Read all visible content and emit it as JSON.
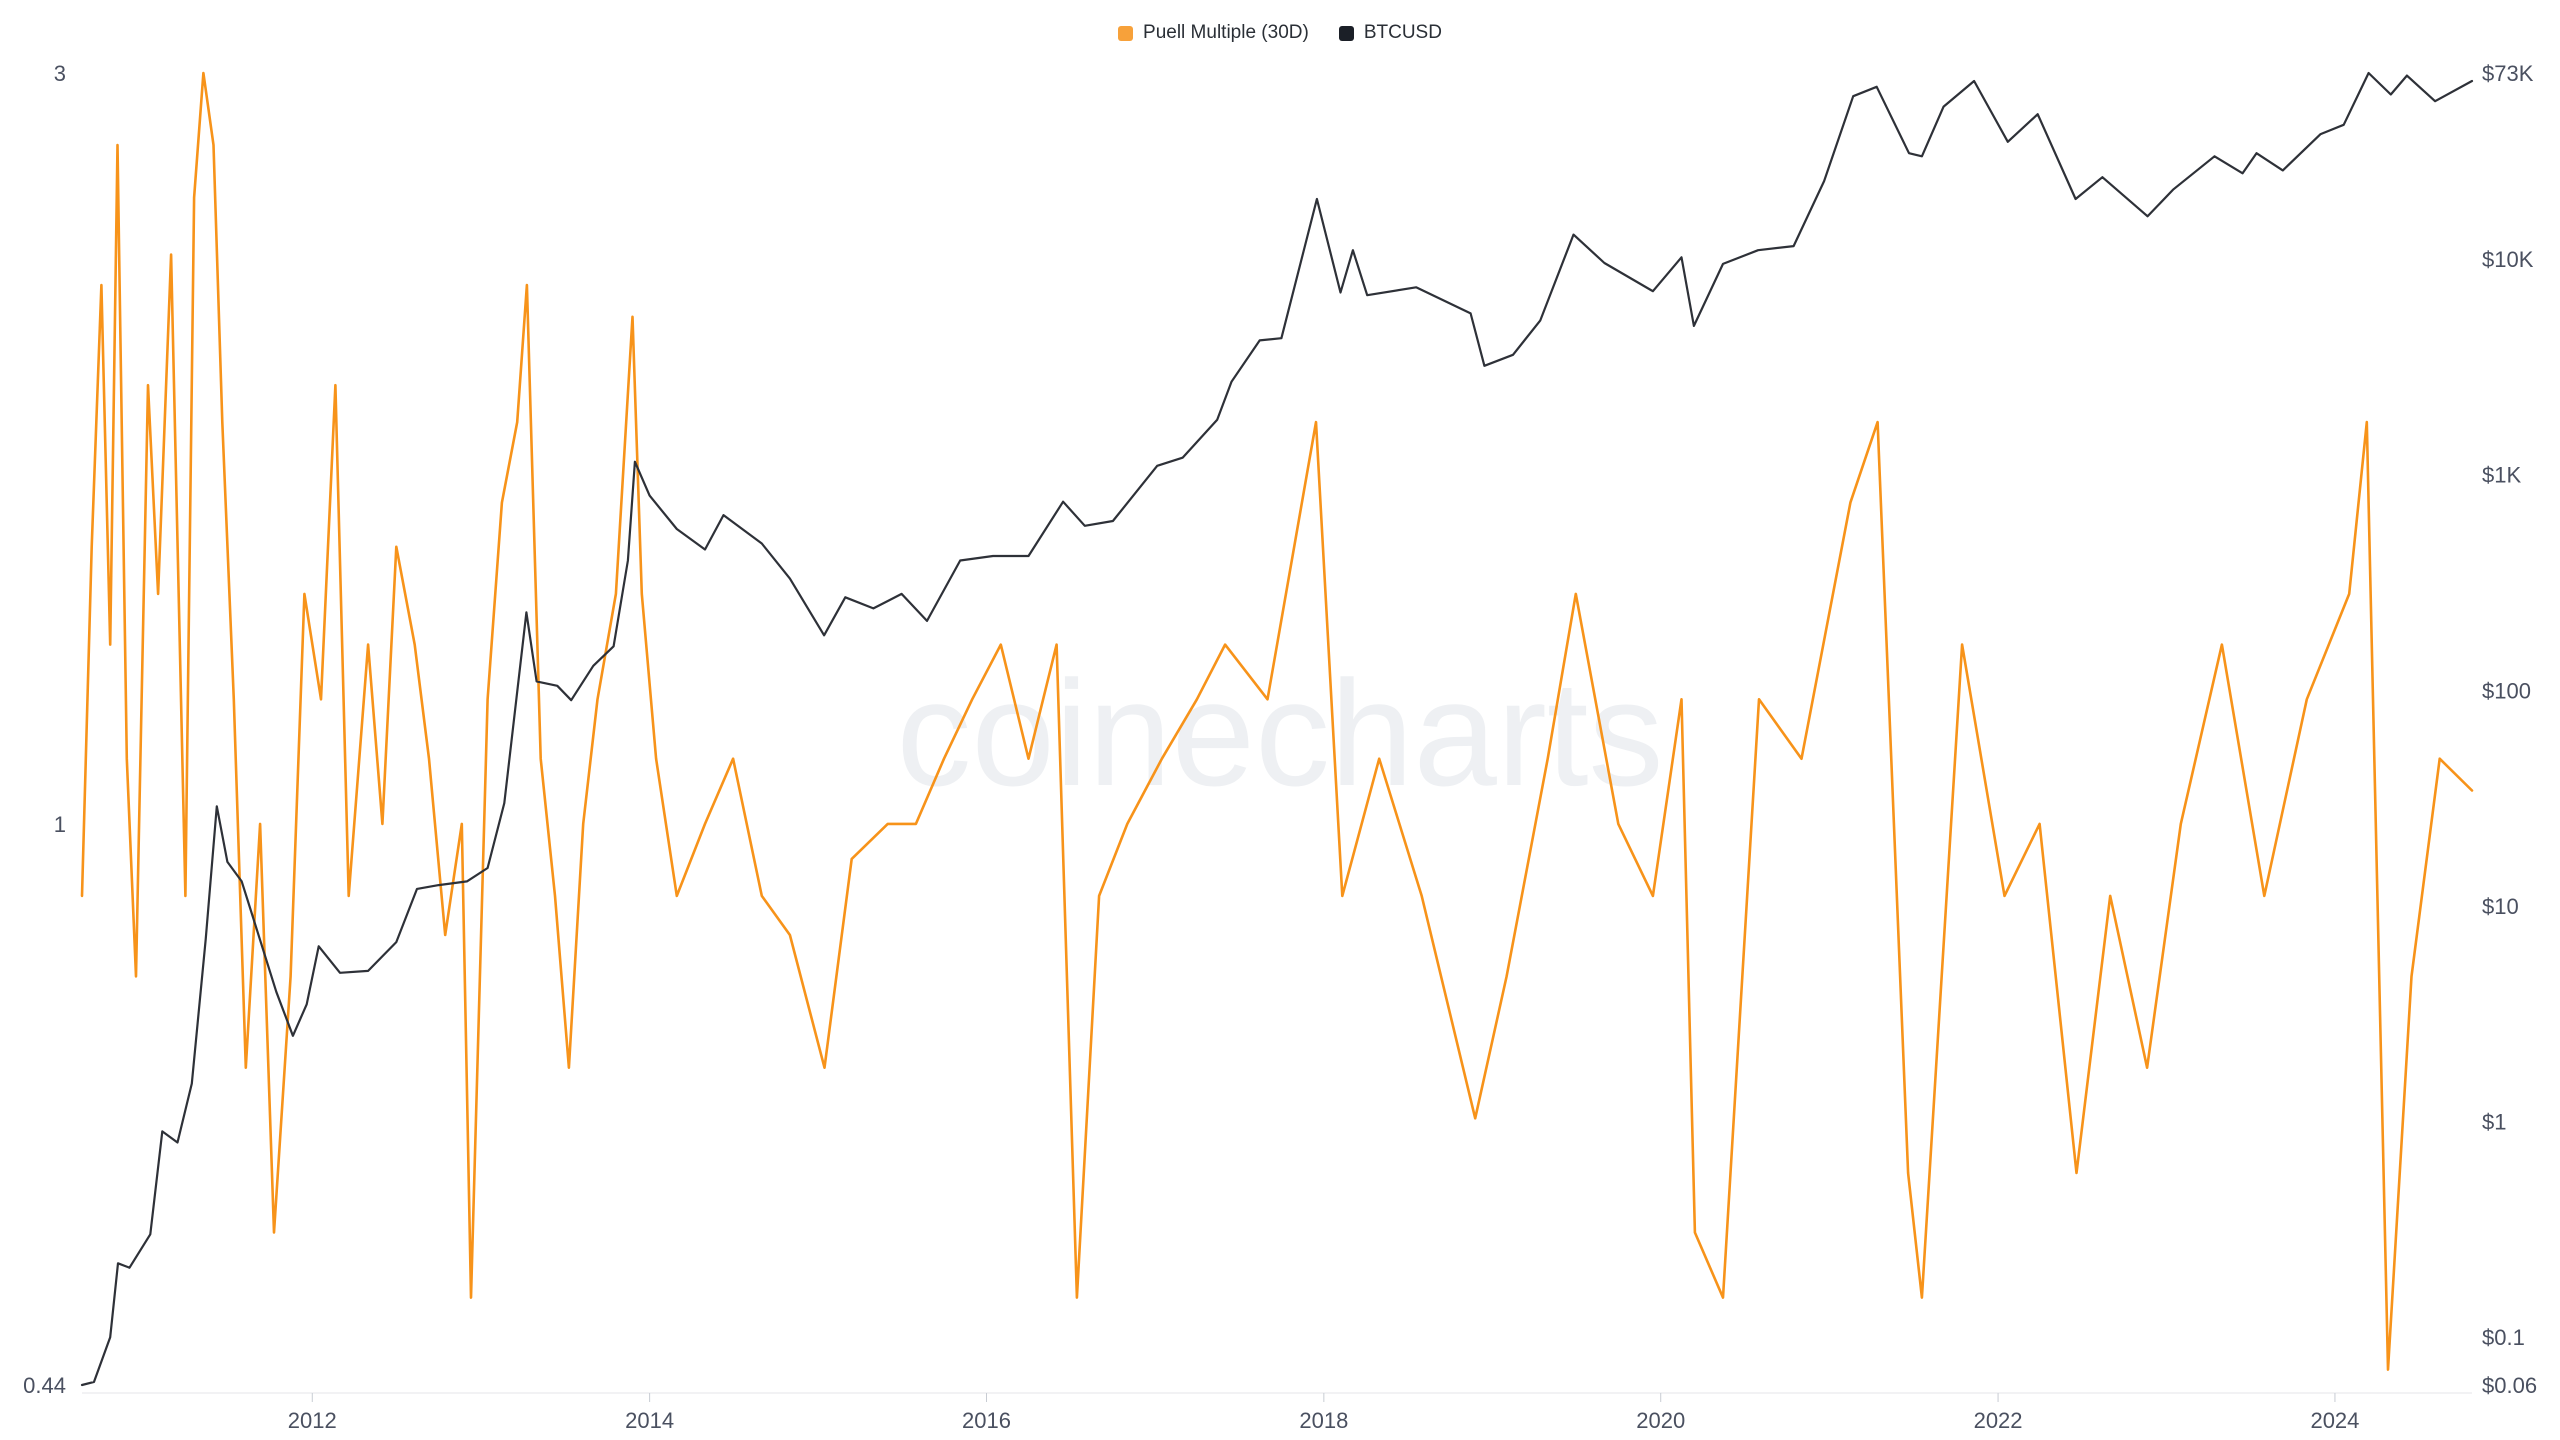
{
  "legend": {
    "puell_label": "Puell Multiple (30D)",
    "btc_label": "BTCUSD"
  },
  "watermark": "coinecharts",
  "colors": {
    "puell": "#f7931a",
    "btc": "#2e3138",
    "puell_legend": "#f7a13a",
    "btc_legend": "#1b1f27"
  },
  "chart_data": {
    "type": "line",
    "title": "",
    "xlabel": "",
    "ylabel": "",
    "x_ticks": [
      "2012",
      "2014",
      "2016",
      "2018",
      "2020",
      "2022",
      "2024"
    ],
    "x_range": [
      "2010-08-20",
      "2024-10-24"
    ],
    "left_axis": {
      "scale": "log",
      "ticks": [
        "3",
        "1",
        "0.44"
      ],
      "range": [
        0.44,
        3
      ]
    },
    "right_axis": {
      "scale": "log",
      "ticks": [
        "$73K",
        "$10K",
        "$1K",
        "$100",
        "$10",
        "$1",
        "$0.1",
        "$0.06"
      ],
      "range": [
        0.06,
        73000
      ]
    },
    "grid": false,
    "legend_position": "top-center",
    "series": [
      {
        "name": "Puell Multiple (30D)",
        "axis": "left",
        "points": [
          [
            "2010-08-20",
            0.9
          ],
          [
            "2010-09-10",
            1.5
          ],
          [
            "2010-10-01",
            2.2
          ],
          [
            "2010-10-20",
            1.3
          ],
          [
            "2010-11-05",
            2.7
          ],
          [
            "2010-11-25",
            1.1
          ],
          [
            "2010-12-15",
            0.8
          ],
          [
            "2011-01-10",
            1.9
          ],
          [
            "2011-02-01",
            1.4
          ],
          [
            "2011-03-01",
            2.3
          ],
          [
            "2011-04-01",
            0.9
          ],
          [
            "2011-04-20",
            2.5
          ],
          [
            "2011-05-10",
            3.0
          ],
          [
            "2011-06-01",
            2.7
          ],
          [
            "2011-06-20",
            1.8
          ],
          [
            "2011-07-15",
            1.2
          ],
          [
            "2011-08-10",
            0.7
          ],
          [
            "2011-09-10",
            1.0
          ],
          [
            "2011-10-10",
            0.55
          ],
          [
            "2011-11-15",
            0.8
          ],
          [
            "2011-12-15",
            1.4
          ],
          [
            "2012-01-20",
            1.2
          ],
          [
            "2012-02-20",
            1.9
          ],
          [
            "2012-03-20",
            0.9
          ],
          [
            "2012-05-01",
            1.3
          ],
          [
            "2012-06-01",
            1.0
          ],
          [
            "2012-07-01",
            1.5
          ],
          [
            "2012-08-10",
            1.3
          ],
          [
            "2012-09-10",
            1.1
          ],
          [
            "2012-10-15",
            0.85
          ],
          [
            "2012-11-20",
            1.0
          ],
          [
            "2012-12-10",
            0.5
          ],
          [
            "2013-01-15",
            1.2
          ],
          [
            "2013-02-15",
            1.6
          ],
          [
            "2013-03-20",
            1.8
          ],
          [
            "2013-04-10",
            2.2
          ],
          [
            "2013-05-10",
            1.1
          ],
          [
            "2013-06-10",
            0.9
          ],
          [
            "2013-07-10",
            0.7
          ],
          [
            "2013-08-10",
            1.0
          ],
          [
            "2013-09-10",
            1.2
          ],
          [
            "2013-10-20",
            1.4
          ],
          [
            "2013-11-25",
            2.1
          ],
          [
            "2013-12-15",
            1.4
          ],
          [
            "2014-01-15",
            1.1
          ],
          [
            "2014-03-01",
            0.9
          ],
          [
            "2014-05-01",
            1.0
          ],
          [
            "2014-07-01",
            1.1
          ],
          [
            "2014-09-01",
            0.9
          ],
          [
            "2014-11-01",
            0.85
          ],
          [
            "2015-01-15",
            0.7
          ],
          [
            "2015-03-15",
            0.95
          ],
          [
            "2015-06-01",
            1.0
          ],
          [
            "2015-08-01",
            1.0
          ],
          [
            "2015-10-01",
            1.1
          ],
          [
            "2015-12-01",
            1.2
          ],
          [
            "2016-02-01",
            1.3
          ],
          [
            "2016-04-01",
            1.1
          ],
          [
            "2016-06-01",
            1.3
          ],
          [
            "2016-07-15",
            0.5
          ],
          [
            "2016-09-01",
            0.9
          ],
          [
            "2016-11-01",
            1.0
          ],
          [
            "2017-01-15",
            1.1
          ],
          [
            "2017-04-01",
            1.2
          ],
          [
            "2017-06-01",
            1.3
          ],
          [
            "2017-09-01",
            1.2
          ],
          [
            "2017-12-15",
            1.8
          ],
          [
            "2018-02-10",
            0.9
          ],
          [
            "2018-05-01",
            1.1
          ],
          [
            "2018-08-01",
            0.9
          ],
          [
            "2018-11-25",
            0.65
          ],
          [
            "2019-02-01",
            0.8
          ],
          [
            "2019-05-01",
            1.1
          ],
          [
            "2019-07-01",
            1.4
          ],
          [
            "2019-10-01",
            1.0
          ],
          [
            "2019-12-15",
            0.9
          ],
          [
            "2020-02-15",
            1.2
          ],
          [
            "2020-03-15",
            0.55
          ],
          [
            "2020-05-15",
            0.5
          ],
          [
            "2020-08-01",
            1.2
          ],
          [
            "2020-11-01",
            1.1
          ],
          [
            "2021-02-15",
            1.6
          ],
          [
            "2021-04-15",
            1.8
          ],
          [
            "2021-06-20",
            0.6
          ],
          [
            "2021-07-20",
            0.5
          ],
          [
            "2021-10-15",
            1.3
          ],
          [
            "2022-01-15",
            0.9
          ],
          [
            "2022-04-01",
            1.0
          ],
          [
            "2022-06-20",
            0.6
          ],
          [
            "2022-09-01",
            0.9
          ],
          [
            "2022-11-20",
            0.7
          ],
          [
            "2023-02-01",
            1.0
          ],
          [
            "2023-05-01",
            1.3
          ],
          [
            "2023-08-01",
            0.9
          ],
          [
            "2023-11-01",
            1.2
          ],
          [
            "2024-02-01",
            1.4
          ],
          [
            "2024-03-10",
            1.8
          ],
          [
            "2024-04-25",
            0.45
          ],
          [
            "2024-06-15",
            0.8
          ],
          [
            "2024-08-15",
            1.1
          ],
          [
            "2024-10-24",
            1.05
          ]
        ]
      },
      {
        "name": "BTCUSD",
        "axis": "right",
        "points": [
          [
            "2010-08-20",
            0.06
          ],
          [
            "2010-09-15",
            0.062
          ],
          [
            "2010-10-20",
            0.1
          ],
          [
            "2010-11-06",
            0.22
          ],
          [
            "2010-12-01",
            0.21
          ],
          [
            "2011-01-15",
            0.3
          ],
          [
            "2011-02-10",
            0.9
          ],
          [
            "2011-03-15",
            0.8
          ],
          [
            "2011-04-15",
            1.5
          ],
          [
            "2011-05-15",
            7.0
          ],
          [
            "2011-06-08",
            29.0
          ],
          [
            "2011-07-01",
            16.0
          ],
          [
            "2011-08-01",
            13.0
          ],
          [
            "2011-09-01",
            8.0
          ],
          [
            "2011-10-15",
            4.0
          ],
          [
            "2011-11-20",
            2.5
          ],
          [
            "2011-12-20",
            3.5
          ],
          [
            "2012-01-15",
            6.5
          ],
          [
            "2012-03-01",
            4.9
          ],
          [
            "2012-05-01",
            5.0
          ],
          [
            "2012-07-01",
            6.8
          ],
          [
            "2012-08-15",
            12.0
          ],
          [
            "2012-10-01",
            12.5
          ],
          [
            "2012-12-01",
            13.0
          ],
          [
            "2013-01-15",
            15.0
          ],
          [
            "2013-02-20",
            30.0
          ],
          [
            "2013-04-09",
            230.0
          ],
          [
            "2013-05-01",
            110.0
          ],
          [
            "2013-06-15",
            105.0
          ],
          [
            "2013-07-15",
            90.0
          ],
          [
            "2013-09-01",
            130.0
          ],
          [
            "2013-10-15",
            160.0
          ],
          [
            "2013-11-15",
            400.0
          ],
          [
            "2013-11-30",
            1150.0
          ],
          [
            "2014-01-01",
            800.0
          ],
          [
            "2014-03-01",
            560.0
          ],
          [
            "2014-05-01",
            450.0
          ],
          [
            "2014-06-10",
            650.0
          ],
          [
            "2014-09-01",
            480.0
          ],
          [
            "2014-11-01",
            330.0
          ],
          [
            "2015-01-14",
            180.0
          ],
          [
            "2015-03-01",
            270.0
          ],
          [
            "2015-05-01",
            240.0
          ],
          [
            "2015-07-01",
            280.0
          ],
          [
            "2015-08-25",
            210.0
          ],
          [
            "2015-11-05",
            400.0
          ],
          [
            "2016-01-15",
            420.0
          ],
          [
            "2016-04-01",
            420.0
          ],
          [
            "2016-06-15",
            750.0
          ],
          [
            "2016-08-01",
            580.0
          ],
          [
            "2016-10-01",
            610.0
          ],
          [
            "2017-01-05",
            1100.0
          ],
          [
            "2017-03-01",
            1200.0
          ],
          [
            "2017-05-15",
            1800.0
          ],
          [
            "2017-06-15",
            2700.0
          ],
          [
            "2017-08-15",
            4200.0
          ],
          [
            "2017-10-01",
            4300.0
          ],
          [
            "2017-12-17",
            19000.0
          ],
          [
            "2018-02-06",
            7000.0
          ],
          [
            "2018-03-05",
            11000.0
          ],
          [
            "2018-04-05",
            6800.0
          ],
          [
            "2018-07-20",
            7400.0
          ],
          [
            "2018-11-15",
            5600.0
          ],
          [
            "2018-12-15",
            3200.0
          ],
          [
            "2019-02-15",
            3600.0
          ],
          [
            "2019-04-15",
            5200.0
          ],
          [
            "2019-06-26",
            13000.0
          ],
          [
            "2019-09-01",
            9600.0
          ],
          [
            "2019-12-15",
            7100.0
          ],
          [
            "2020-02-15",
            10200.0
          ],
          [
            "2020-03-13",
            4900.0
          ],
          [
            "2020-05-15",
            9500.0
          ],
          [
            "2020-07-30",
            11000.0
          ],
          [
            "2020-10-15",
            11500.0
          ],
          [
            "2020-12-20",
            23000.0
          ],
          [
            "2021-02-21",
            57000.0
          ],
          [
            "2021-04-13",
            63000.0
          ],
          [
            "2021-06-22",
            31000.0
          ],
          [
            "2021-07-20",
            30000.0
          ],
          [
            "2021-09-05",
            51000.0
          ],
          [
            "2021-11-10",
            67000.0
          ],
          [
            "2022-01-22",
            35000.0
          ],
          [
            "2022-03-28",
            47000.0
          ],
          [
            "2022-06-18",
            19000.0
          ],
          [
            "2022-08-15",
            24000.0
          ],
          [
            "2022-11-21",
            15800.0
          ],
          [
            "2023-01-15",
            21000.0
          ],
          [
            "2023-04-15",
            30000.0
          ],
          [
            "2023-06-15",
            25000.0
          ],
          [
            "2023-07-15",
            31000.0
          ],
          [
            "2023-09-10",
            25800.0
          ],
          [
            "2023-12-01",
            38000.0
          ],
          [
            "2024-01-20",
            42000.0
          ],
          [
            "2024-03-14",
            73000.0
          ],
          [
            "2024-05-01",
            58000.0
          ],
          [
            "2024-06-05",
            71000.0
          ],
          [
            "2024-08-05",
            54000.0
          ],
          [
            "2024-10-24",
            67000.0
          ]
        ]
      }
    ]
  }
}
